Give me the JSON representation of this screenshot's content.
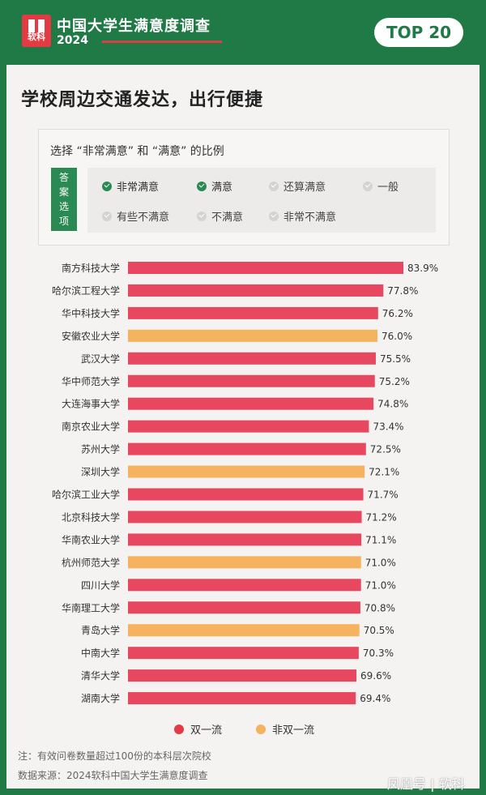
{
  "header": {
    "logo_text": "软科",
    "survey_title": "中国大学生满意度调查",
    "survey_year": "2024",
    "badge": "TOP 20"
  },
  "main_title": "学校周边交通发达，出行便捷",
  "legend_box": {
    "title": "选择 “非常满意” 和 “满意” 的比例",
    "answer_tag": [
      "答",
      "案",
      "选",
      "项"
    ],
    "options": [
      {
        "label": "非常满意",
        "checked": true
      },
      {
        "label": "满意",
        "checked": true
      },
      {
        "label": "还算满意",
        "checked": false
      },
      {
        "label": "一般",
        "checked": false
      },
      {
        "label": "有些不满意",
        "checked": false
      },
      {
        "label": "不满意",
        "checked": false
      },
      {
        "label": "非常不满意",
        "checked": false
      }
    ]
  },
  "chart_data": {
    "type": "bar",
    "orientation": "horizontal",
    "categories": [
      "南方科技大学",
      "哈尔滨工程大学",
      "华中科技大学",
      "安徽农业大学",
      "武汉大学",
      "华中师范大学",
      "大连海事大学",
      "南京农业大学",
      "苏州大学",
      "深圳大学",
      "哈尔滨工业大学",
      "北京科技大学",
      "华南农业大学",
      "杭州师范大学",
      "四川大学",
      "华南理工大学",
      "青岛大学",
      "中南大学",
      "清华大学",
      "湖南大学"
    ],
    "values": [
      83.9,
      77.8,
      76.2,
      76.0,
      75.5,
      75.2,
      74.8,
      73.4,
      72.5,
      72.1,
      71.7,
      71.2,
      71.1,
      71.0,
      71.0,
      70.8,
      70.5,
      70.3,
      69.6,
      69.4
    ],
    "value_labels": [
      "83.9%",
      "77.8%",
      "76.2%",
      "76.0%",
      "75.5%",
      "75.2%",
      "74.8%",
      "73.4%",
      "72.5%",
      "72.1%",
      "71.7%",
      "71.2%",
      "71.1%",
      "71.0%",
      "71.0%",
      "70.8%",
      "70.5%",
      "70.3%",
      "69.6%",
      "69.4%"
    ],
    "groups": [
      "双一流",
      "双一流",
      "双一流",
      "非双一流",
      "双一流",
      "双一流",
      "双一流",
      "双一流",
      "双一流",
      "非双一流",
      "双一流",
      "双一流",
      "双一流",
      "非双一流",
      "双一流",
      "双一流",
      "非双一流",
      "双一流",
      "双一流",
      "双一流"
    ],
    "legend": [
      {
        "name": "双一流",
        "color": "#e8485f"
      },
      {
        "name": "非双一流",
        "color": "#f5b25f"
      }
    ],
    "legend_position": "bottom",
    "grid": false
  },
  "notes": {
    "note": "注：有效问卷数量超过100份的本科层次院校",
    "source": "数据来源：2024软科中国大学生满意度调查"
  },
  "watermark": "凤凰号 | 软科",
  "colors": {
    "brand_green": "#1f7a45",
    "double_first": "#e8485f",
    "non_double_first": "#f5b25f",
    "badge_red": "#e23b43"
  }
}
